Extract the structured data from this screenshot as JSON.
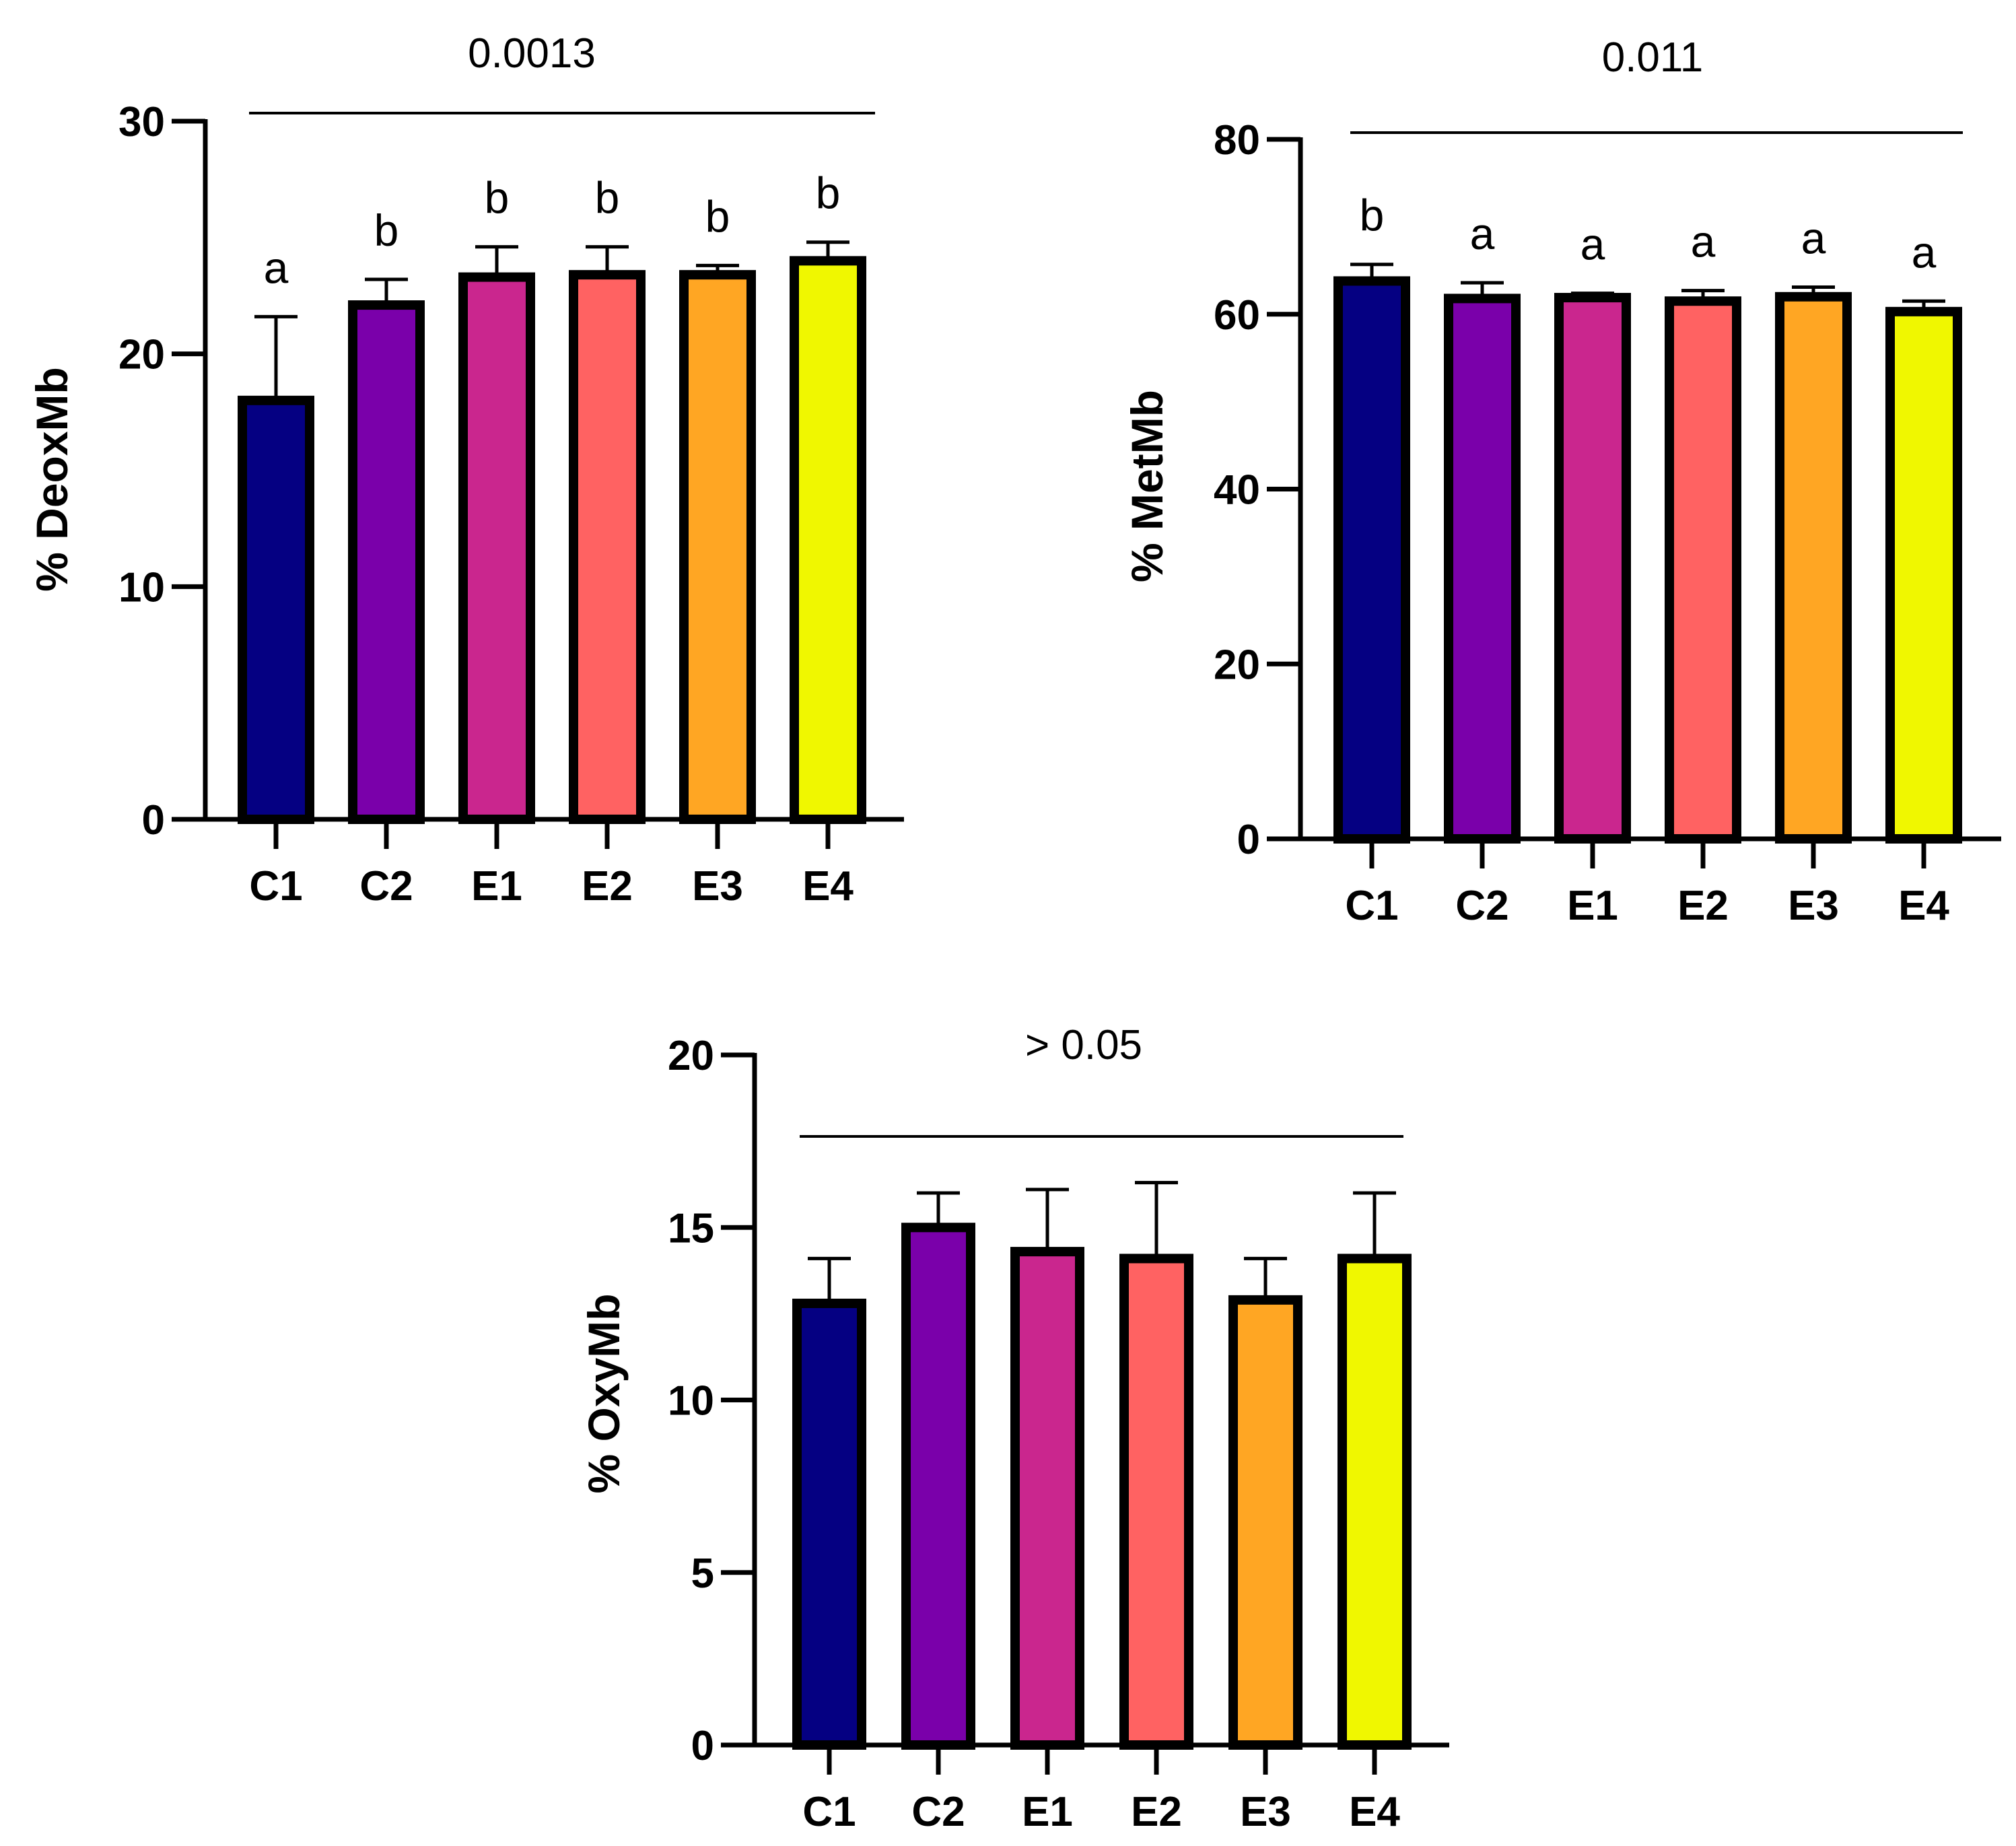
{
  "chart_data": [
    {
      "type": "bar",
      "panel": "top-left",
      "ylabel": "% DeoxMb",
      "ylim": [
        0,
        30
      ],
      "yticks": [
        0,
        10,
        20,
        30
      ],
      "categories": [
        "C1",
        "C2",
        "E1",
        "E2",
        "E3",
        "E4"
      ],
      "values": [
        18.0,
        22.1,
        23.3,
        23.4,
        23.4,
        24.0
      ],
      "errors": [
        3.6,
        1.1,
        1.3,
        1.2,
        0.4,
        0.8
      ],
      "colors": [
        "#050082",
        "#7A00AA",
        "#CA268E",
        "#FF6262",
        "#FFA623",
        "#F0F700"
      ],
      "group_letters": [
        "a",
        "b",
        "b",
        "b",
        "b",
        "b"
      ],
      "p_value": "0.0013"
    },
    {
      "type": "bar",
      "panel": "top-right",
      "ylabel": "% MetMb",
      "ylim": [
        0,
        80
      ],
      "yticks": [
        0,
        20,
        40,
        60,
        80
      ],
      "categories": [
        "C1",
        "C2",
        "E1",
        "E2",
        "E3",
        "E4"
      ],
      "values": [
        63.8,
        61.8,
        61.9,
        61.5,
        62.0,
        60.3
      ],
      "errors": [
        1.9,
        1.8,
        0.5,
        1.2,
        1.1,
        1.2
      ],
      "colors": [
        "#050082",
        "#7A00AA",
        "#CA268E",
        "#FF6262",
        "#FFA623",
        "#F0F700"
      ],
      "group_letters": [
        "b",
        "a",
        "a",
        "a",
        "a",
        "a"
      ],
      "p_value": "0.011"
    },
    {
      "type": "bar",
      "panel": "bottom-center",
      "ylabel": "% OxyMb",
      "ylim": [
        0,
        20
      ],
      "yticks": [
        0,
        5,
        10,
        15,
        20
      ],
      "categories": [
        "C1",
        "C2",
        "E1",
        "E2",
        "E3",
        "E4"
      ],
      "values": [
        12.8,
        15.0,
        14.3,
        14.1,
        12.9,
        14.1
      ],
      "errors": [
        1.3,
        1.0,
        1.8,
        2.2,
        1.2,
        1.9
      ],
      "colors": [
        "#050082",
        "#7A00AA",
        "#CA268E",
        "#FF6262",
        "#FFA623",
        "#F0F700"
      ],
      "group_letters": [],
      "p_value": "> 0.05"
    }
  ]
}
